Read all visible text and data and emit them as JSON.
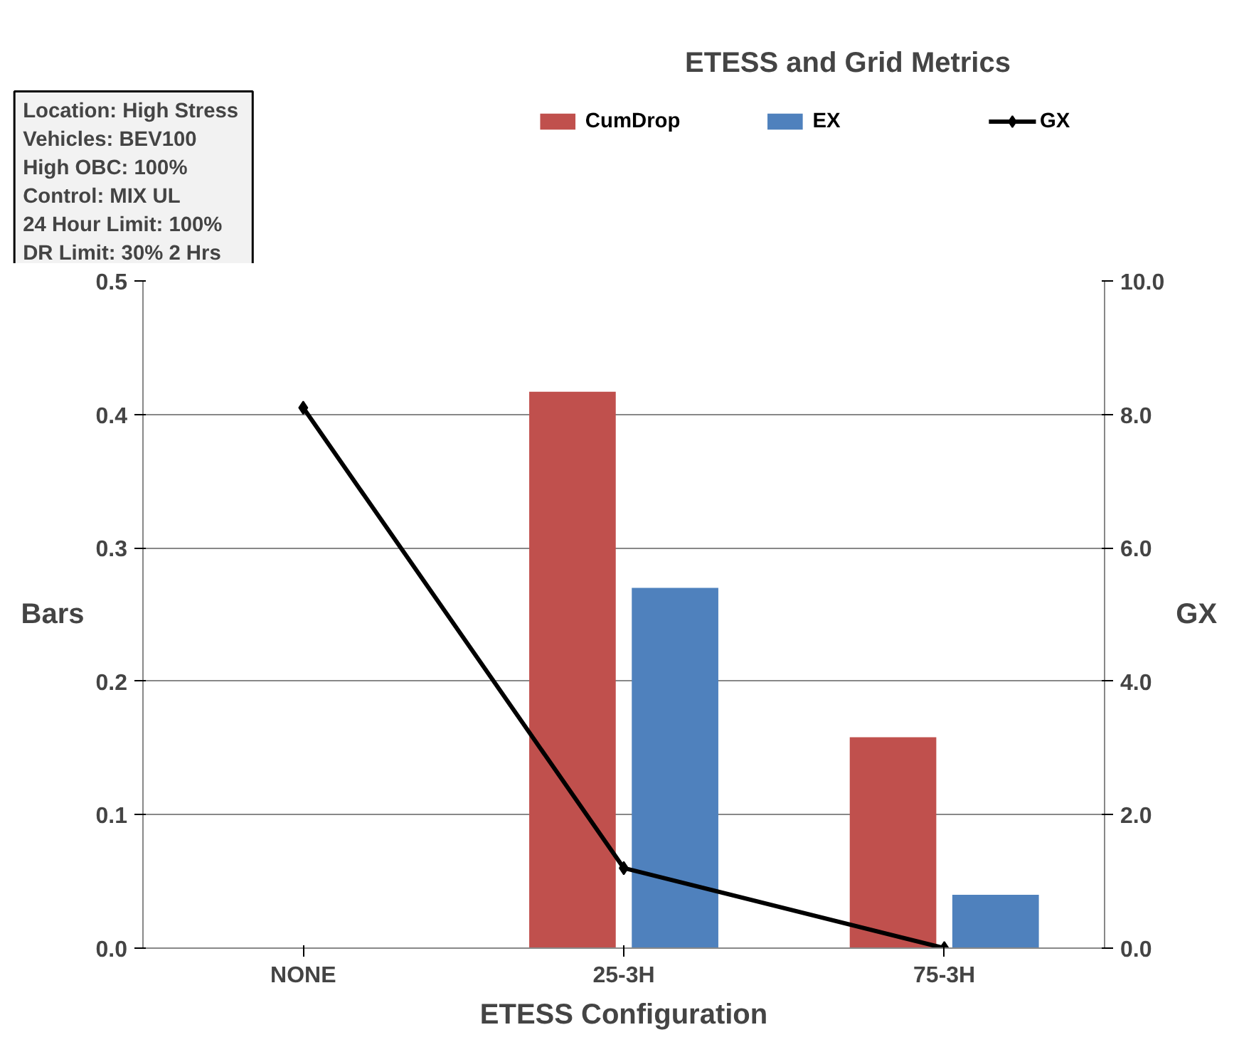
{
  "chart_data": {
    "type": "bar",
    "title": "ETESS and Grid Metrics",
    "categories": [
      "NONE",
      "25-3H",
      "75-3H"
    ],
    "series": [
      {
        "name": "CumDrop",
        "color": "#c0504d",
        "values": [
          0,
          0.417,
          0.158
        ]
      },
      {
        "name": "EX",
        "color": "#4f81bd",
        "values": [
          0,
          0.27,
          0.04
        ]
      },
      {
        "name": "GX",
        "type": "line",
        "axis": "y2",
        "color": "#000000",
        "marker": "diamond",
        "values": [
          8.1,
          1.2,
          0.0
        ]
      }
    ],
    "xlabel": "ETESS Configuration",
    "ylabel": "Bars",
    "y2label": "GX",
    "ylim": [
      0,
      0.5
    ],
    "yticks": [
      {
        "value": 0,
        "label": "0.0"
      },
      0.1,
      0.2,
      0.3,
      0.4,
      0.5
    ],
    "y2lim": [
      0,
      10
    ],
    "y2ticks": [
      {
        "value": 0,
        "label": "0.0"
      },
      {
        "value": 2,
        "label": "2.0"
      },
      {
        "value": 4,
        "label": "4.0"
      },
      {
        "value": 6,
        "label": "6.0"
      },
      {
        "value": 8,
        "label": "8.0"
      },
      {
        "value": 10,
        "label": "10.0"
      }
    ],
    "grid": "y",
    "legend": "top",
    "annotations": [
      "Location:  High Stress",
      "Vehicles: BEV100",
      "High OBC: 100%",
      "Control: MIX UL",
      "24 Hour Limit: 100%",
      "DR Limit: 30% 2 Hrs"
    ]
  }
}
